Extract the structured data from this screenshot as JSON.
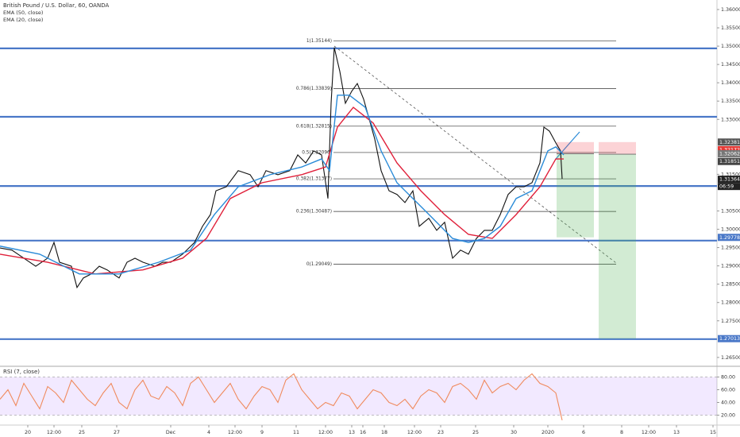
{
  "header": {
    "title": "British Pound / U.S. Dollar, 60, OANDA"
  },
  "chart_data": [
    {
      "type": "line",
      "xlim": [
        0,
        903
      ],
      "ylim": [
        1.2628,
        1.3626
      ],
      "yticks": [
        {
          "value": 1.36,
          "label": "1.36000"
        },
        {
          "value": 1.355,
          "label": "1.35500"
        },
        {
          "value": 1.35,
          "label": "1.35000"
        },
        {
          "value": 1.345,
          "label": "1.34500"
        },
        {
          "value": 1.34,
          "label": "1.34000"
        },
        {
          "value": 1.335,
          "label": "1.33500"
        },
        {
          "value": 1.33,
          "label": "1.33000"
        },
        {
          "value": 1.315,
          "label": "1.31500"
        },
        {
          "value": 1.305,
          "label": "1.30500"
        },
        {
          "value": 1.3,
          "label": "1.30000"
        },
        {
          "value": 1.295,
          "label": "1.29500"
        },
        {
          "value": 1.29,
          "label": "1.29000"
        },
        {
          "value": 1.285,
          "label": "1.28500"
        },
        {
          "value": 1.28,
          "label": "1.28000"
        },
        {
          "value": 1.275,
          "label": "1.27500"
        },
        {
          "value": 1.265,
          "label": "1.26500"
        }
      ],
      "xticks": [
        {
          "value": 35,
          "label": "20"
        },
        {
          "value": 68,
          "label": "12:00"
        },
        {
          "value": 103,
          "label": "25"
        },
        {
          "value": 147,
          "label": "27"
        },
        {
          "value": 215,
          "label": "Dec"
        },
        {
          "value": 263,
          "label": "4"
        },
        {
          "value": 296,
          "label": "12:00"
        },
        {
          "value": 330,
          "label": "9"
        },
        {
          "value": 373,
          "label": "11"
        },
        {
          "value": 410,
          "label": "12:00"
        },
        {
          "value": 443,
          "label": "13"
        },
        {
          "value": 457,
          "label": "16"
        },
        {
          "value": 484,
          "label": "18"
        },
        {
          "value": 522,
          "label": "12:00"
        },
        {
          "value": 555,
          "label": "23"
        },
        {
          "value": 599,
          "label": "25"
        },
        {
          "value": 647,
          "label": "30"
        },
        {
          "value": 690,
          "label": "2020"
        },
        {
          "value": 735,
          "label": "6"
        },
        {
          "value": 783,
          "label": "8"
        },
        {
          "value": 817,
          "label": "12:00"
        },
        {
          "value": 852,
          "label": "13"
        },
        {
          "value": 898,
          "label": "15"
        }
      ],
      "series": [
        {
          "color": "#111111",
          "x": [
            0,
            15,
            30,
            45,
            60,
            68,
            75,
            90,
            97,
            105,
            115,
            125,
            135,
            150,
            160,
            170,
            180,
            195,
            205,
            215,
            230,
            245,
            255,
            265,
            272,
            285,
            300,
            315,
            325,
            335,
            350,
            365,
            375,
            385,
            395,
            405,
            413,
            417,
            421,
            428,
            435,
            443,
            450,
            458,
            465,
            472,
            480,
            490,
            500,
            510,
            520,
            528,
            540,
            550,
            560,
            570,
            580,
            590,
            600,
            610,
            620,
            630,
            640,
            650,
            660,
            670,
            680,
            685,
            692,
            700,
            706,
            708
          ],
          "values": [
            1.2949,
            1.2943,
            1.2921,
            1.2899,
            1.2921,
            1.2964,
            1.291,
            1.2899,
            1.2841,
            1.2867,
            1.2878,
            1.2899,
            1.2889,
            1.2867,
            1.291,
            1.2921,
            1.291,
            1.2899,
            1.291,
            1.291,
            1.2932,
            1.2964,
            1.3008,
            1.304,
            1.3105,
            1.3116,
            1.316,
            1.3149,
            1.3116,
            1.316,
            1.3149,
            1.316,
            1.3203,
            1.3181,
            1.3214,
            1.3203,
            1.3084,
            1.3344,
            1.3496,
            1.3431,
            1.3344,
            1.3377,
            1.3398,
            1.3355,
            1.3301,
            1.3246,
            1.316,
            1.3105,
            1.3095,
            1.3073,
            1.3105,
            1.3008,
            1.303,
            1.2997,
            1.3019,
            1.2921,
            1.2943,
            1.2932,
            1.2975,
            1.2997,
            1.2997,
            1.304,
            1.3095,
            1.3116,
            1.3116,
            1.3127,
            1.3181,
            1.3279,
            1.3268,
            1.3236,
            1.3214,
            1.3138
          ]
        },
        {
          "name": "EMA (50, close)",
          "color": "#e0203a",
          "x": [
            0,
            60,
            120,
            180,
            230,
            260,
            290,
            330,
            380,
            410,
            425,
            445,
            470,
            500,
            530,
            560,
            590,
            620,
            650,
            680,
            700,
            710
          ],
          "values": [
            1.2932,
            1.291,
            1.2878,
            1.2889,
            1.2921,
            1.2975,
            1.3084,
            1.3127,
            1.3149,
            1.317,
            1.3279,
            1.3333,
            1.329,
            1.3181,
            1.3105,
            1.304,
            1.2986,
            1.2975,
            1.304,
            1.3116,
            1.3192,
            1.3192
          ]
        },
        {
          "name": "EMA (20, close)",
          "color": "#2a8bd8",
          "x": [
            0,
            50,
            100,
            150,
            200,
            240,
            270,
            300,
            340,
            380,
            405,
            415,
            425,
            440,
            460,
            480,
            500,
            520,
            545,
            570,
            590,
            610,
            630,
            650,
            670,
            690,
            700,
            710
          ],
          "values": [
            1.2954,
            1.2932,
            1.2878,
            1.2878,
            1.291,
            1.2943,
            1.304,
            1.3116,
            1.3149,
            1.317,
            1.3192,
            1.316,
            1.3366,
            1.3366,
            1.3333,
            1.3214,
            1.3127,
            1.3084,
            1.303,
            1.2975,
            1.2964,
            1.2975,
            1.3008,
            1.3084,
            1.3105,
            1.3214,
            1.3225,
            1.3203
          ]
        }
      ],
      "levels": [
        1.3494,
        1.3307,
        1.3118,
        1.2969,
        1.27
      ],
      "level_color": "#4a78c8",
      "fib_x": [
        420,
        776
      ],
      "fib": [
        {
          "value": 1.35144,
          "label": "1(1.35144)"
        },
        {
          "value": 1.33839,
          "label": "0.786(1.33839)"
        },
        {
          "value": 1.32815,
          "label": "0.618(1.32815)"
        },
        {
          "value": 1.32096,
          "label": "0.5(1.32096)"
        },
        {
          "value": 1.31377,
          "label": "0.382(1.31377)"
        },
        {
          "value": 1.30487,
          "label": "0.236(1.30487)"
        },
        {
          "value": 1.29049,
          "label": "0(1.29049)"
        }
      ],
      "positions": [
        {
          "x": [
            701,
            748
          ],
          "stop": 1.3238,
          "entry": 1.3206,
          "target": 1.2978
        },
        {
          "x": [
            754,
            801
          ],
          "stop": 1.3238,
          "entry": 1.3205,
          "target": 1.2701
        }
      ],
      "price_labels": [
        1.32381,
        1.32172,
        1.32062,
        1.31851,
        1.31364,
        1.29778,
        1.27013
      ],
      "price_label_colors": [
        "#555555",
        "#e53935",
        "#777777",
        "#444444",
        "#222222",
        "#4a78c8",
        "#4a78c8"
      ],
      "countdown": "06:59"
    },
    {
      "type": "line",
      "title": "RSI (7, close)",
      "xlim": [
        0,
        903
      ],
      "ylim": [
        4.4,
        95.6
      ],
      "yticks": [
        {
          "value": 80,
          "label": "80.00"
        },
        {
          "value": 60,
          "label": "60.00"
        },
        {
          "value": 40,
          "label": "40.00"
        },
        {
          "value": 20,
          "label": "20.00"
        }
      ],
      "band": [
        20,
        80
      ],
      "series": [
        {
          "color": "#f08a5d",
          "x": [
            0,
            10,
            20,
            30,
            40,
            50,
            60,
            70,
            80,
            90,
            100,
            110,
            120,
            130,
            140,
            150,
            160,
            170,
            180,
            190,
            200,
            210,
            220,
            230,
            240,
            250,
            260,
            270,
            280,
            290,
            300,
            310,
            320,
            330,
            340,
            350,
            360,
            370,
            380,
            390,
            400,
            410,
            420,
            430,
            440,
            450,
            460,
            470,
            480,
            490,
            500,
            510,
            520,
            530,
            540,
            550,
            560,
            570,
            580,
            590,
            600,
            610,
            620,
            630,
            640,
            650,
            660,
            670,
            680,
            690,
            700,
            708
          ],
          "values": [
            45,
            60,
            35,
            70,
            50,
            30,
            65,
            55,
            40,
            75,
            60,
            45,
            35,
            55,
            70,
            40,
            30,
            60,
            75,
            50,
            45,
            65,
            55,
            35,
            70,
            80,
            60,
            40,
            55,
            70,
            45,
            30,
            50,
            65,
            60,
            40,
            75,
            85,
            60,
            45,
            30,
            40,
            35,
            55,
            50,
            30,
            45,
            60,
            55,
            40,
            35,
            45,
            30,
            50,
            60,
            55,
            40,
            65,
            70,
            60,
            45,
            75,
            55,
            65,
            70,
            60,
            75,
            85,
            70,
            65,
            55,
            12
          ]
        }
      ]
    }
  ]
}
